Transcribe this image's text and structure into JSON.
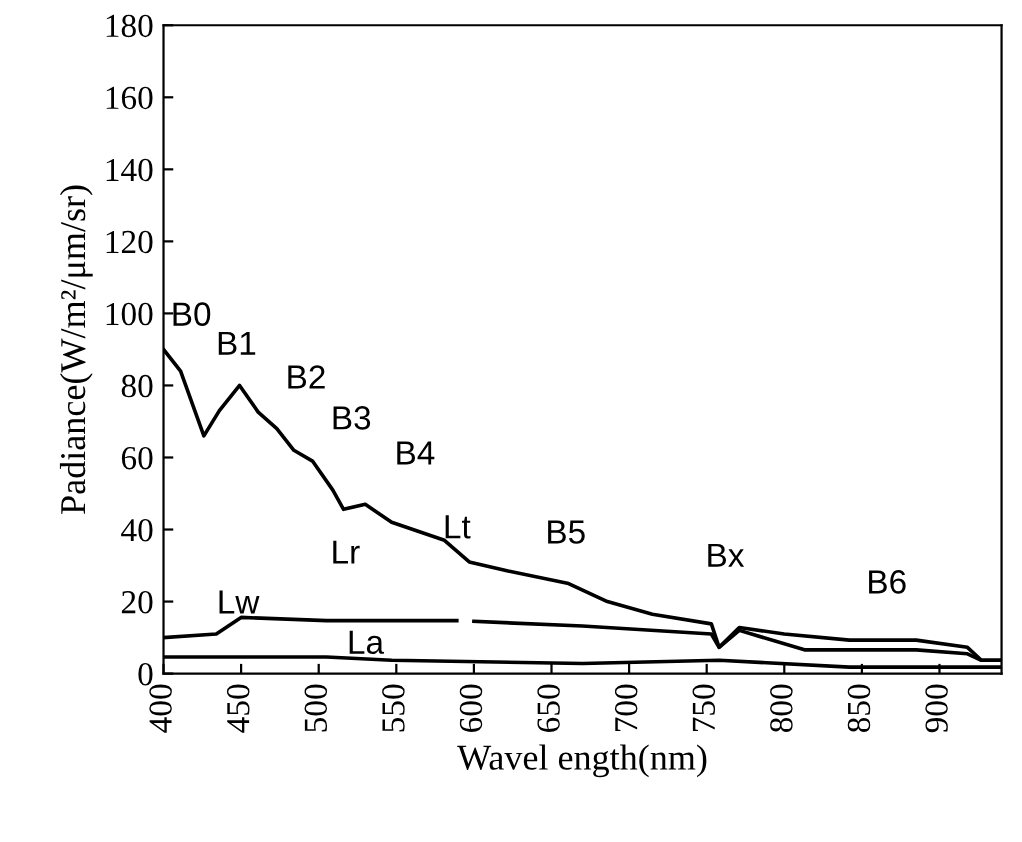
{
  "chart_data": {
    "type": "line",
    "xlabel": "Wavel ength(nm)",
    "ylabel": "Padiance(W/m²/μm/sr)",
    "xlim": [
      400,
      940
    ],
    "ylim": [
      0,
      180
    ],
    "xticks": [
      400,
      450,
      500,
      550,
      600,
      650,
      700,
      750,
      800,
      850,
      900
    ],
    "yticks": [
      0,
      20,
      40,
      60,
      80,
      100,
      120,
      140,
      160,
      180
    ],
    "grid": false,
    "legend": false,
    "marker": "none",
    "line_style": "solid",
    "series": [
      {
        "color": "#000000",
        "x": [
          400,
          411,
          426,
          436,
          449,
          461,
          473,
          484,
          496,
          509,
          516,
          530,
          547,
          581,
          597,
          622,
          661,
          686,
          715,
          753,
          758,
          771,
          800,
          842,
          885,
          918,
          927,
          940
        ],
        "values": [
          90,
          84,
          66,
          73,
          80,
          72.6,
          68,
          62,
          59,
          51,
          45.6,
          47,
          42,
          37,
          31,
          28.5,
          25,
          20,
          16.5,
          13.8,
          7.3,
          12.8,
          11,
          9.3,
          9.3,
          7.3,
          3.7,
          3.7
        ]
      },
      {
        "color": "#000000",
        "x": [
          400,
          434,
          450,
          505,
          589,
          595,
          600,
          670,
          753,
          758,
          771,
          813,
          885,
          918,
          927,
          940
        ],
        "values": [
          10,
          11,
          15.6,
          14.7,
          14.7,
          null,
          14.5,
          13.2,
          11,
          7.3,
          12,
          6.6,
          6.6,
          5.5,
          3.7,
          3.7
        ]
      },
      {
        "color": "#000000",
        "x": [
          400,
          505,
          547,
          670,
          758,
          842,
          918,
          940
        ],
        "values": [
          4.6,
          4.6,
          3.7,
          2.8,
          3.7,
          1.8,
          1.8,
          1.8
        ]
      }
    ],
    "annotations": [
      "B0",
      "B1",
      "B2",
      "B3",
      "B4",
      "Lt",
      "Lr",
      "Lw",
      "La",
      "B5",
      "Bx",
      "B6"
    ]
  }
}
